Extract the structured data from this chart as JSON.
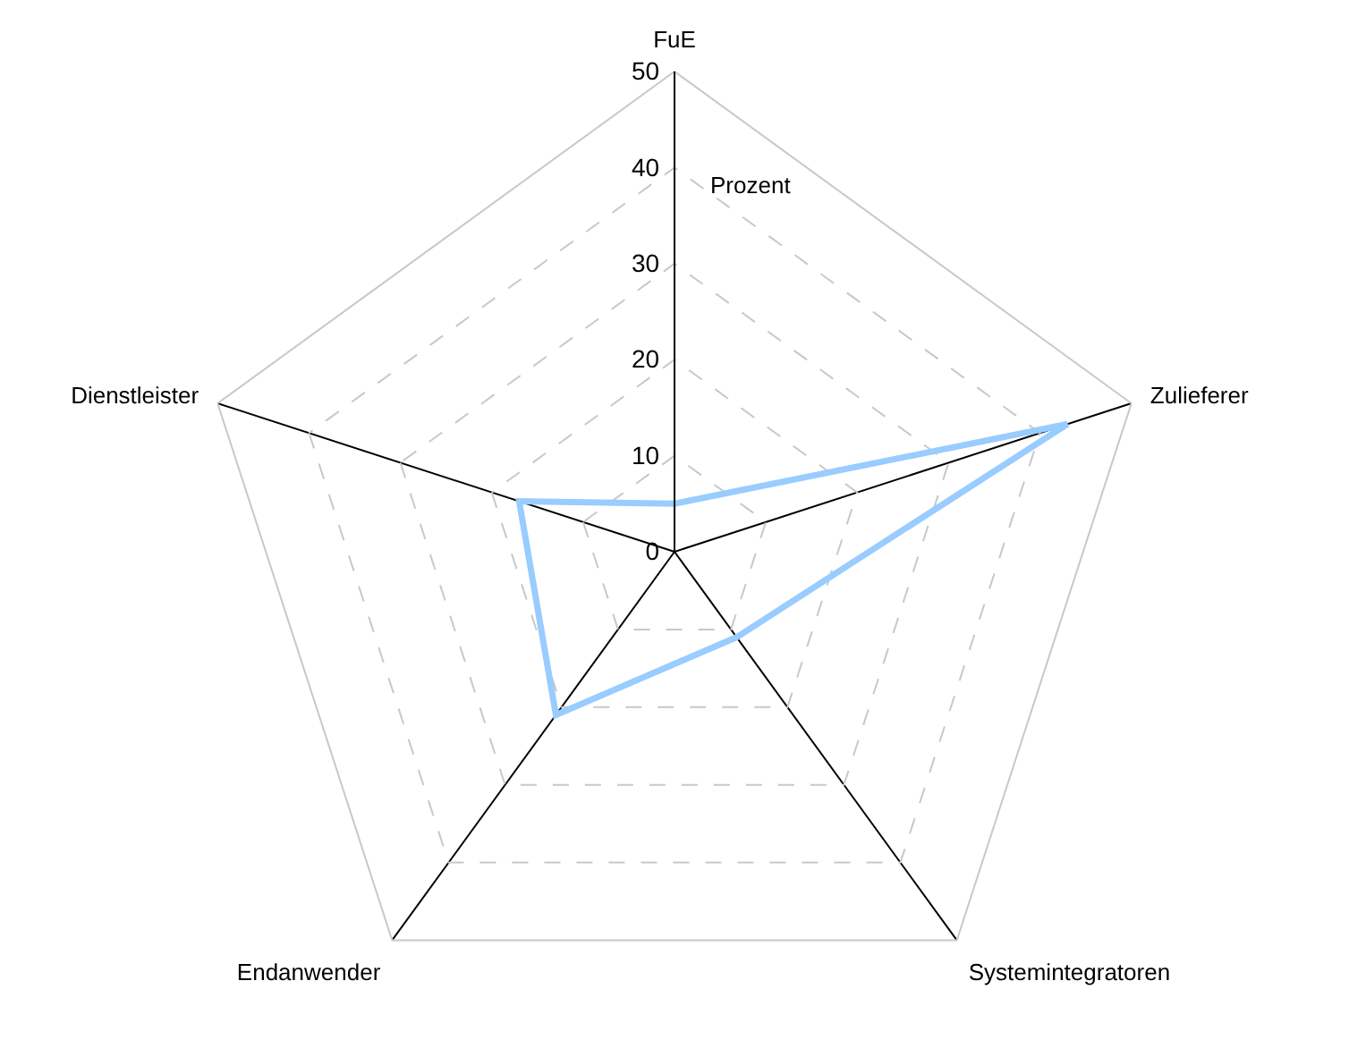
{
  "chart_data": {
    "type": "radar",
    "categories": [
      "FuE",
      "Zulieferer",
      "Systemintegratoren",
      "Endanwender",
      "Dienstleister"
    ],
    "series": [
      {
        "color": "#99ccff",
        "values": [
          5,
          43,
          11,
          21,
          17
        ]
      }
    ],
    "ylim": [
      0,
      50
    ],
    "yticks": [
      0,
      10,
      20,
      30,
      40,
      50
    ],
    "grid": true,
    "line_style": "solid",
    "marker": "none",
    "annotations": [
      "Prozent"
    ]
  }
}
